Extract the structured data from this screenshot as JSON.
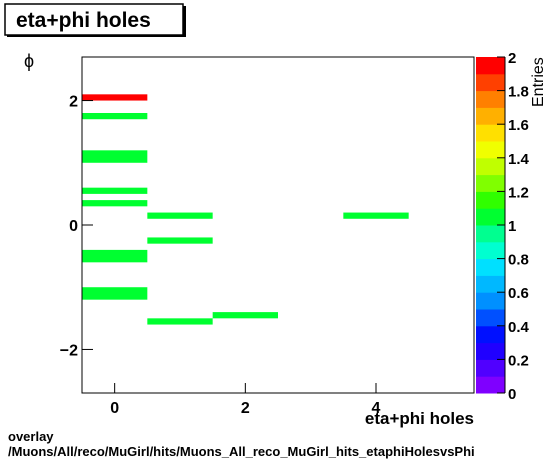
{
  "chart_data": {
    "type": "heatmap",
    "title": "eta+phi holes",
    "x_label": "eta+phi holes",
    "y_label": "ϕ",
    "z_label": "Entries",
    "footer": [
      "overlay",
      "/Muons/All/reco/MuGirl/hits/Muons_All_reco_MuGirl_hits_etaphiHolesvsPhi"
    ],
    "xlim": [
      -0.5,
      5.5
    ],
    "xticks": [
      0,
      2,
      4
    ],
    "ylim": [
      -2.7,
      2.7
    ],
    "yticks": [
      {
        "value": -2,
        "label": "−2"
      },
      0,
      2
    ],
    "zlim": [
      0,
      2
    ],
    "zticks": [
      0,
      0.2,
      0.4,
      0.6,
      0.8,
      1,
      1.2,
      1.4,
      1.6,
      1.8,
      2
    ],
    "palette": [
      "#7f00ff",
      "#5000ff",
      "#2000ff",
      "#0010ff",
      "#0050ff",
      "#0090ff",
      "#00b8ff",
      "#00e0ff",
      "#00ffd0",
      "#00ff90",
      "#00ff30",
      "#30ff00",
      "#80ff00",
      "#c0ff00",
      "#f0ff00",
      "#ffe000",
      "#ffb000",
      "#ff8000",
      "#ff4000",
      "#ff0000"
    ],
    "cells": [
      {
        "x": [
          -0.5,
          0.5
        ],
        "y": [
          2.0,
          2.1
        ],
        "value": 2
      },
      {
        "x": [
          -0.5,
          0.5
        ],
        "y": [
          1.7,
          1.8
        ],
        "value": 1
      },
      {
        "x": [
          -0.5,
          0.5
        ],
        "y": [
          1.0,
          1.2
        ],
        "value": 1
      },
      {
        "x": [
          -0.5,
          0.5
        ],
        "y": [
          0.5,
          0.6
        ],
        "value": 1
      },
      {
        "x": [
          -0.5,
          0.5
        ],
        "y": [
          0.3,
          0.4
        ],
        "value": 1
      },
      {
        "x": [
          0.5,
          1.5
        ],
        "y": [
          0.1,
          0.2
        ],
        "value": 1
      },
      {
        "x": [
          3.5,
          4.5
        ],
        "y": [
          0.1,
          0.2
        ],
        "value": 1
      },
      {
        "x": [
          0.5,
          1.5
        ],
        "y": [
          -0.3,
          -0.2
        ],
        "value": 1
      },
      {
        "x": [
          -0.5,
          0.5
        ],
        "y": [
          -0.6,
          -0.4
        ],
        "value": 1
      },
      {
        "x": [
          -0.5,
          0.5
        ],
        "y": [
          -1.2,
          -1.0
        ],
        "value": 1
      },
      {
        "x": [
          1.5,
          2.5
        ],
        "y": [
          -1.5,
          -1.4
        ],
        "value": 1
      },
      {
        "x": [
          0.5,
          1.5
        ],
        "y": [
          -1.6,
          -1.5
        ],
        "value": 1
      }
    ]
  }
}
